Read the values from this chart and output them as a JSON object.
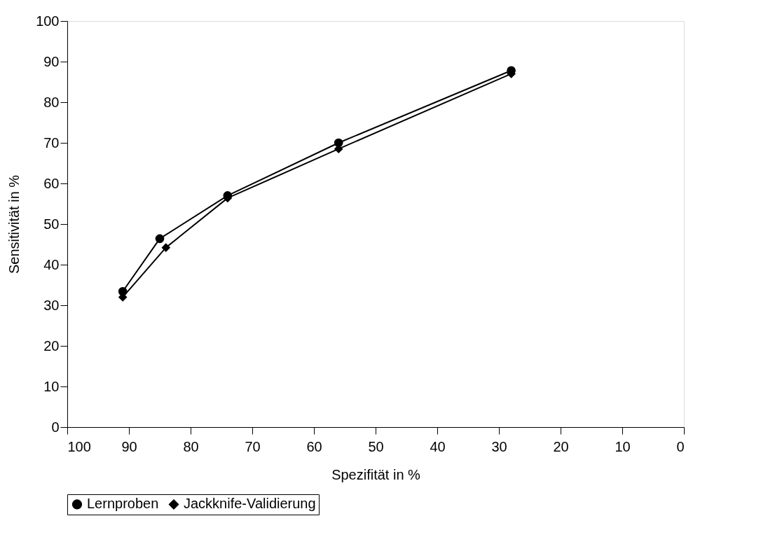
{
  "chart_data": {
    "type": "line",
    "xlabel": "Spezifität in %",
    "ylabel": "Sensitivität in %",
    "xlim": [
      100,
      0
    ],
    "xticks": [
      100,
      90,
      80,
      70,
      60,
      50,
      40,
      30,
      20,
      10,
      0
    ],
    "ylim": [
      0,
      100
    ],
    "yticks": [
      0,
      10,
      20,
      30,
      40,
      50,
      60,
      70,
      80,
      90,
      100
    ],
    "grid": false,
    "legend": "bottom",
    "line_style": "solid",
    "series": [
      {
        "name": "Lernproben",
        "color": "#000000",
        "marker": "circle",
        "x": [
          91,
          85,
          74,
          56,
          28
        ],
        "values": [
          33.4,
          46.4,
          57.0,
          70.0,
          87.8
        ]
      },
      {
        "name": "Jackknife-Validierung",
        "color": "#000000",
        "marker": "diamond",
        "x": [
          91,
          84,
          74,
          56,
          28
        ],
        "values": [
          32.0,
          44.2,
          56.4,
          68.5,
          87.0
        ]
      }
    ]
  }
}
